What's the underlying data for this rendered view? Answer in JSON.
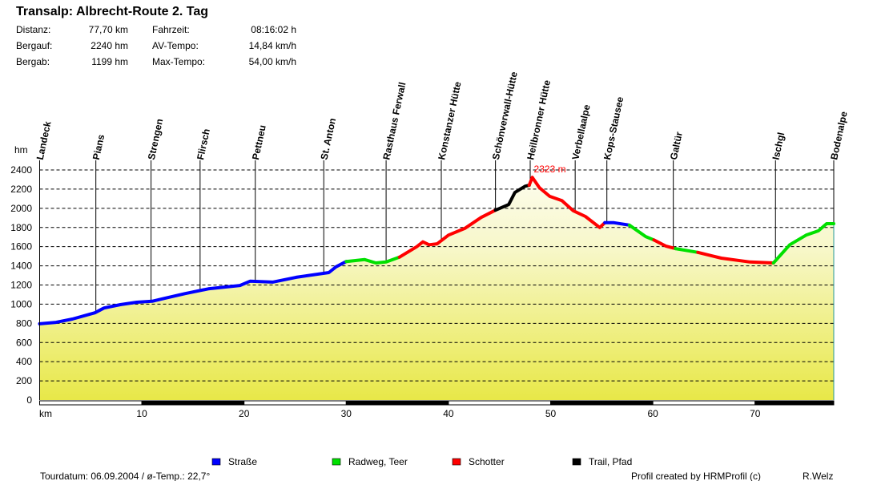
{
  "header": {
    "title": "Transalp: Albrecht-Route 2. Tag",
    "stats": [
      {
        "label": "Distanz:",
        "value": "77,70 km"
      },
      {
        "label": "Bergauf:",
        "value": "2240 hm"
      },
      {
        "label": "Bergab:",
        "value": "1199 hm"
      },
      {
        "label": "Fahrzeit:",
        "value": "08:16:02 h"
      },
      {
        "label": "AV-Tempo:",
        "value": "14,84 km/h"
      },
      {
        "label": "Max-Tempo:",
        "value": "54,00 km/h"
      }
    ]
  },
  "footer": {
    "tour": "Tourdatum: 06.09.2004  /  ø-Temp.: 22,7°",
    "credit": "Profil created by HRMProfil (c)",
    "author": "R.Welz"
  },
  "chart_data": {
    "type": "area",
    "title": "",
    "xlabel": "km",
    "ylabel": "hm",
    "xlim": [
      0,
      77.7
    ],
    "ylim": [
      0,
      2400
    ],
    "x_ticks": [
      10,
      20,
      30,
      40,
      50,
      60,
      70
    ],
    "y_ticks": [
      0,
      200,
      400,
      600,
      800,
      1000,
      1200,
      1400,
      1600,
      1800,
      2000,
      2200,
      2400
    ],
    "grid": "horizontal dashed",
    "legend_position": "bottom",
    "peak_label": {
      "km": 48.2,
      "value": 2323,
      "text": "2323 m"
    },
    "surfaces": [
      {
        "name": "Straße",
        "color": "#0000ff"
      },
      {
        "name": "Radweg, Teer",
        "color": "#00e000"
      },
      {
        "name": "Schotter",
        "color": "#ff0000"
      },
      {
        "name": "Trail, Pfad",
        "color": "#000000"
      }
    ],
    "waypoints": [
      {
        "name": "Landeck",
        "km": 0
      },
      {
        "name": "Pians",
        "km": 5.5
      },
      {
        "name": "Strengen",
        "km": 10.9
      },
      {
        "name": "Flirsch",
        "km": 15.7
      },
      {
        "name": "Pettneu",
        "km": 21.1
      },
      {
        "name": "St. Anton",
        "km": 27.8
      },
      {
        "name": "Rasthaus Ferwall",
        "km": 33.9
      },
      {
        "name": "Konstanzer Hütte",
        "km": 39.3
      },
      {
        "name": "Schönverwall-Hütte",
        "km": 44.6
      },
      {
        "name": "Heilbronner Hütte",
        "km": 48.0
      },
      {
        "name": "Verbellaalpe",
        "km": 52.4
      },
      {
        "name": "Kops-Stausee",
        "km": 55.5
      },
      {
        "name": "Galtür",
        "km": 62.0
      },
      {
        "name": "Ischgl",
        "km": 72.0
      },
      {
        "name": "Bodenalpe",
        "km": 77.7
      }
    ],
    "segments": [
      {
        "surface": 0,
        "points": [
          [
            0,
            795
          ],
          [
            1.6,
            810
          ],
          [
            3.2,
            845
          ],
          [
            5.4,
            910
          ],
          [
            6.3,
            960
          ],
          [
            7.9,
            995
          ],
          [
            9.5,
            1020
          ],
          [
            11,
            1030
          ],
          [
            12.2,
            1060
          ],
          [
            14.2,
            1110
          ],
          [
            16.5,
            1160
          ],
          [
            19.6,
            1195
          ],
          [
            20.6,
            1240
          ],
          [
            22.8,
            1230
          ],
          [
            25.1,
            1280
          ],
          [
            28.3,
            1330
          ],
          [
            29,
            1390
          ],
          [
            30,
            1445
          ]
        ]
      },
      {
        "surface": 1,
        "points": [
          [
            30,
            1445
          ],
          [
            31.8,
            1465
          ],
          [
            32.9,
            1430
          ],
          [
            33.9,
            1440
          ],
          [
            35.2,
            1490
          ]
        ]
      },
      {
        "surface": 2,
        "points": [
          [
            35.2,
            1490
          ],
          [
            36.9,
            1600
          ],
          [
            37.5,
            1650
          ],
          [
            38.1,
            1620
          ],
          [
            38.9,
            1630
          ],
          [
            40,
            1720
          ],
          [
            41.6,
            1790
          ],
          [
            43.2,
            1905
          ],
          [
            44.6,
            1980
          ]
        ]
      },
      {
        "surface": 3,
        "points": [
          [
            44.6,
            1980
          ],
          [
            45.9,
            2040
          ],
          [
            46.5,
            2165
          ],
          [
            47.5,
            2230
          ],
          [
            47.9,
            2240
          ]
        ]
      },
      {
        "surface": 2,
        "points": [
          [
            47.9,
            2240
          ],
          [
            48.2,
            2323
          ],
          [
            48.9,
            2215
          ],
          [
            49.9,
            2125
          ],
          [
            51.1,
            2080
          ],
          [
            52.2,
            1975
          ],
          [
            53.4,
            1915
          ],
          [
            54.8,
            1800
          ],
          [
            55.3,
            1850
          ]
        ]
      },
      {
        "surface": 0,
        "points": [
          [
            55.3,
            1850
          ],
          [
            56.2,
            1850
          ],
          [
            57.7,
            1825
          ]
        ]
      },
      {
        "surface": 1,
        "points": [
          [
            57.7,
            1825
          ],
          [
            59.3,
            1705
          ],
          [
            60.1,
            1670
          ]
        ]
      },
      {
        "surface": 2,
        "points": [
          [
            60.1,
            1670
          ],
          [
            61.3,
            1605
          ],
          [
            62.2,
            1580
          ]
        ]
      },
      {
        "surface": 1,
        "points": [
          [
            62.2,
            1580
          ],
          [
            64.4,
            1540
          ]
        ]
      },
      {
        "surface": 2,
        "points": [
          [
            64.4,
            1540
          ],
          [
            66.7,
            1480
          ],
          [
            69.5,
            1440
          ],
          [
            71.8,
            1430
          ]
        ]
      },
      {
        "surface": 1,
        "points": [
          [
            71.8,
            1430
          ],
          [
            73.4,
            1620
          ],
          [
            75,
            1720
          ],
          [
            76.2,
            1765
          ],
          [
            77,
            1840
          ],
          [
            77.7,
            1840
          ]
        ]
      }
    ]
  }
}
